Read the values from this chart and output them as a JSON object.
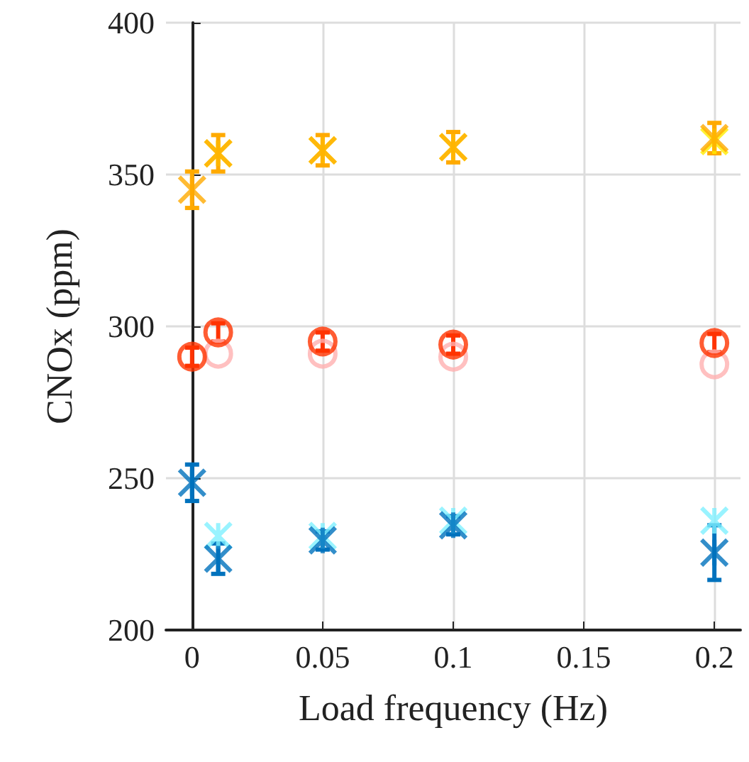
{
  "chart_data": {
    "type": "scatter",
    "xlabel": "Load frequency (Hz)",
    "ylabel": "CNOx (ppm)",
    "x": [
      0,
      0.01,
      0.05,
      0.1,
      0.2
    ],
    "xlim": [
      -0.01,
      0.21
    ],
    "xticks": [
      0,
      0.05,
      0.1,
      0.15,
      0.2
    ],
    "ylim": [
      200,
      400
    ],
    "yticks": [
      200,
      250,
      300,
      350,
      400
    ],
    "grid": true,
    "series": [
      {
        "color": "#ffee00",
        "marker": "cross",
        "values": [
          null,
          357,
          358,
          359,
          361
        ]
      },
      {
        "color": "#ffaa00",
        "marker": "cross",
        "values": [
          345,
          357,
          358,
          359,
          362
        ],
        "errors": [
          6,
          6,
          5,
          5,
          5
        ]
      },
      {
        "color": "#ffb0b0",
        "marker": "circle",
        "values": [
          null,
          291,
          291,
          290,
          287.5
        ]
      },
      {
        "color": "#ff3300",
        "marker": "circle",
        "values": [
          290,
          298,
          295,
          294,
          294.5
        ],
        "errors": [
          3,
          3,
          3,
          3,
          3
        ]
      },
      {
        "color": "#80f0ff",
        "marker": "cross",
        "values": [
          null,
          231,
          231,
          236,
          236
        ]
      },
      {
        "color": "#0072bd",
        "marker": "cross",
        "values": [
          248.5,
          223.5,
          229.5,
          234.5,
          225.5
        ],
        "errors": [
          6,
          5,
          3,
          3,
          9
        ]
      }
    ]
  }
}
